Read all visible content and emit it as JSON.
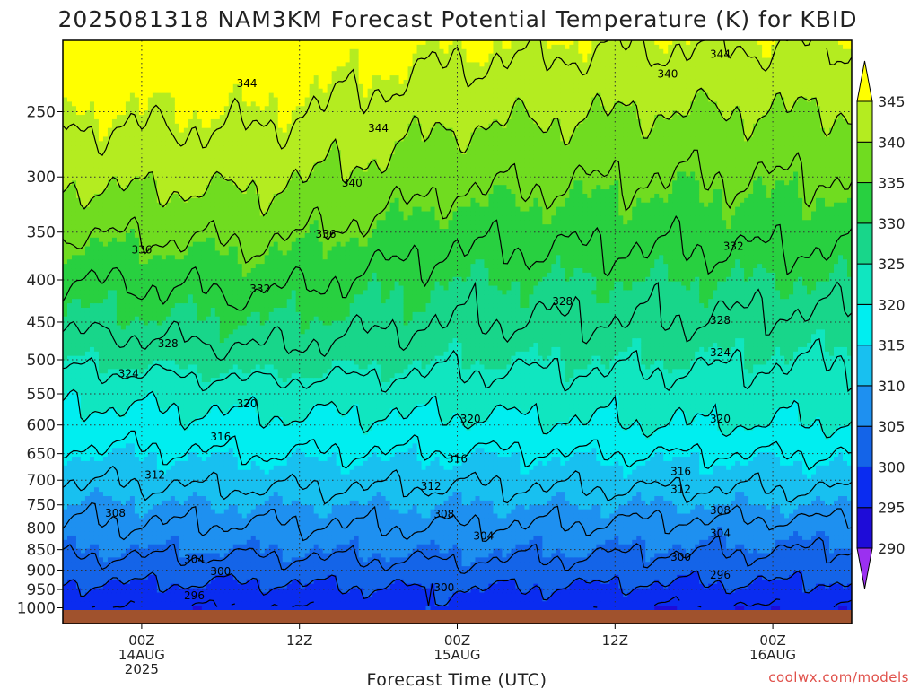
{
  "title": "2025081318 NAM3KM Forecast Potential Temperature (K) for KBID",
  "xlabel": "Forecast Time (UTC)",
  "credit": "coolwx.com/models",
  "chart_data": {
    "type": "heatmap",
    "title": "2025081318 NAM3KM Forecast Potential Temperature (K) for KBID",
    "xlabel": "Forecast Time (UTC)",
    "ylabel": "",
    "x_unit": "forecast hour from 2025-08-13 18Z",
    "x_range": [
      0,
      60
    ],
    "x_ticks": [
      {
        "hour": 6,
        "line1": "00Z",
        "line2": "14AUG",
        "line3": "2025"
      },
      {
        "hour": 18,
        "line1": "12Z",
        "line2": "",
        "line3": ""
      },
      {
        "hour": 30,
        "line1": "00Z",
        "line2": "15AUG",
        "line3": ""
      },
      {
        "hour": 42,
        "line1": "12Z",
        "line2": "",
        "line3": ""
      },
      {
        "hour": 54,
        "line1": "00Z",
        "line2": "16AUG",
        "line3": ""
      }
    ],
    "y_unit": "hPa",
    "y_scale": "log-pressure (inverted)",
    "y_range": [
      1000,
      200
    ],
    "y_ticks": [
      250,
      300,
      350,
      400,
      450,
      500,
      550,
      600,
      650,
      700,
      750,
      800,
      850,
      900,
      950,
      1000
    ],
    "grid": true,
    "colorbar": {
      "levels": [
        290,
        295,
        300,
        305,
        310,
        315,
        320,
        325,
        330,
        335,
        340,
        345
      ],
      "labels": [
        "290",
        "295",
        "300",
        "305",
        "310",
        "315",
        "320",
        "325",
        "330",
        "335",
        "340",
        "345"
      ],
      "colors": [
        "#9b30f0",
        "#1e0cd8",
        "#0a2cf0",
        "#1464e8",
        "#1e90f0",
        "#18c0f0",
        "#00eef0",
        "#10e6c0",
        "#18d68a",
        "#28d040",
        "#70dc20",
        "#b4ec20",
        "#ffff00"
      ]
    },
    "contour_interval": 4,
    "contour_levels": [
      296,
      300,
      304,
      308,
      312,
      316,
      320,
      324,
      328,
      332,
      336,
      340,
      344
    ],
    "profile": {
      "pressure": [
        1000,
        950,
        900,
        850,
        800,
        750,
        700,
        650,
        600,
        550,
        500,
        450,
        400,
        350,
        300,
        250,
        200
      ],
      "theta_by_hour": [
        {
          "hour": 0,
          "values": [
            297,
            299,
            302,
            305,
            307.5,
            309.5,
            312,
            315,
            318,
            321,
            325,
            329,
            332,
            336,
            341,
            345,
            349
          ]
        },
        {
          "hour": 15,
          "values": [
            296,
            299,
            302,
            305,
            307.5,
            310,
            313,
            316,
            319,
            322,
            327,
            330,
            333,
            337,
            341,
            345,
            349
          ]
        },
        {
          "hour": 30,
          "values": [
            299,
            300,
            303,
            305.5,
            308,
            310,
            312.5,
            315.5,
            319,
            322,
            325,
            328,
            330,
            333,
            337,
            341,
            346
          ]
        },
        {
          "hour": 45,
          "values": [
            296,
            299,
            302,
            304.5,
            307,
            310,
            313,
            316,
            320,
            322,
            325,
            328,
            330,
            333,
            336,
            340,
            345
          ]
        },
        {
          "hour": 60,
          "values": [
            296,
            299,
            301.5,
            304,
            306.5,
            310,
            313,
            316,
            320,
            322,
            324,
            327,
            330,
            333,
            336,
            340,
            345
          ]
        }
      ]
    },
    "contour_labels": [
      {
        "text": "344",
        "hour": 14,
        "p": 231
      },
      {
        "text": "344",
        "hour": 24,
        "p": 262
      },
      {
        "text": "344",
        "hour": 50,
        "p": 213
      },
      {
        "text": "340",
        "hour": 46,
        "p": 225
      },
      {
        "text": "340",
        "hour": 22,
        "p": 305
      },
      {
        "text": "336",
        "hour": 20,
        "p": 352
      },
      {
        "text": "336",
        "hour": 6,
        "p": 368
      },
      {
        "text": "332",
        "hour": 15,
        "p": 410
      },
      {
        "text": "332",
        "hour": 51,
        "p": 364
      },
      {
        "text": "328",
        "hour": 38,
        "p": 425
      },
      {
        "text": "328",
        "hour": 8,
        "p": 478
      },
      {
        "text": "328",
        "hour": 50,
        "p": 448
      },
      {
        "text": "324",
        "hour": 5,
        "p": 520
      },
      {
        "text": "324",
        "hour": 50,
        "p": 490
      },
      {
        "text": "320",
        "hour": 14,
        "p": 565
      },
      {
        "text": "320",
        "hour": 31,
        "p": 590
      },
      {
        "text": "320",
        "hour": 50,
        "p": 590
      },
      {
        "text": "316",
        "hour": 12,
        "p": 620
      },
      {
        "text": "316",
        "hour": 30,
        "p": 660
      },
      {
        "text": "316",
        "hour": 47,
        "p": 683
      },
      {
        "text": "312",
        "hour": 7,
        "p": 690
      },
      {
        "text": "312",
        "hour": 28,
        "p": 712
      },
      {
        "text": "312",
        "hour": 47,
        "p": 718
      },
      {
        "text": "308",
        "hour": 4,
        "p": 768
      },
      {
        "text": "308",
        "hour": 29,
        "p": 770
      },
      {
        "text": "308",
        "hour": 50,
        "p": 762
      },
      {
        "text": "304",
        "hour": 32,
        "p": 818
      },
      {
        "text": "304",
        "hour": 10,
        "p": 873
      },
      {
        "text": "304",
        "hour": 50,
        "p": 812
      },
      {
        "text": "300",
        "hour": 12,
        "p": 903
      },
      {
        "text": "300",
        "hour": 29,
        "p": 945
      },
      {
        "text": "300",
        "hour": 47,
        "p": 868
      },
      {
        "text": "296",
        "hour": 10,
        "p": 967
      },
      {
        "text": "296",
        "hour": 50,
        "p": 913
      }
    ]
  }
}
